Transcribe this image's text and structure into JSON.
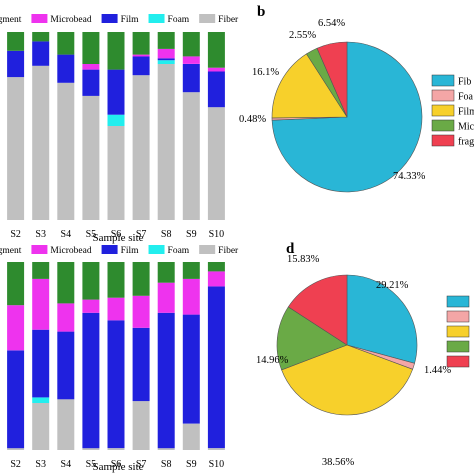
{
  "panels": {
    "b_label": "b",
    "d_label": "d"
  },
  "colors": {
    "Fragment": "#2e8b2e",
    "Microbead": "#ee33ee",
    "Film": "#2020dd",
    "Foam": "#22eeee",
    "Fiber": "#c0c0c0",
    "pie_fiber": "#29b6d6",
    "pie_foam": "#f4a6a6",
    "pie_film": "#f7d02b",
    "pie_micro": "#6aaa46",
    "pie_frag": "#ef4051"
  },
  "chart_data": [
    {
      "type": "bar",
      "stacked": true,
      "xlabel": "Sample site",
      "categories": [
        "S2",
        "S3",
        "S4",
        "S5",
        "S6",
        "S7",
        "S8",
        "S9",
        "S10"
      ],
      "legend": [
        "Fragment",
        "Microbead",
        "Film",
        "Foam",
        "Fiber"
      ],
      "ylim": [
        0,
        100
      ],
      "series": [
        {
          "name": "Fiber",
          "values": [
            76,
            82,
            73,
            66,
            50,
            77,
            83,
            68,
            60
          ]
        },
        {
          "name": "Foam",
          "values": [
            0,
            0,
            0,
            0,
            6,
            0,
            2,
            0,
            0
          ]
        },
        {
          "name": "Film",
          "values": [
            14,
            13,
            15,
            14,
            24,
            10,
            1,
            15,
            19
          ]
        },
        {
          "name": "Microbead",
          "values": [
            0,
            0,
            0,
            3,
            0,
            1,
            5,
            4,
            2
          ]
        },
        {
          "name": "Fragment",
          "values": [
            10,
            5,
            12,
            17,
            20,
            12,
            9,
            13,
            19
          ]
        }
      ]
    },
    {
      "type": "pie",
      "slices": [
        {
          "label": "74.33%",
          "value": 74.33
        },
        {
          "label": "0.48%",
          "value": 0.48
        },
        {
          "label": "16.1%",
          "value": 16.1
        },
        {
          "label": "2.55%",
          "value": 2.55
        },
        {
          "label": "6.54%",
          "value": 6.54
        }
      ],
      "legend": [
        "Fib",
        "Foa",
        "Film",
        "Mic",
        "frag"
      ]
    },
    {
      "type": "bar",
      "stacked": true,
      "xlabel": "Sample site",
      "categories": [
        "S2",
        "S3",
        "S4",
        "S5",
        "S6",
        "S7",
        "S8",
        "S9",
        "S10"
      ],
      "legend": [
        "Fragment",
        "Microbead",
        "Film",
        "Foam",
        "Fiber"
      ],
      "ylim": [
        0,
        100
      ],
      "series": [
        {
          "name": "Fiber",
          "values": [
            1,
            25,
            27,
            1,
            1,
            26,
            1,
            14,
            1
          ]
        },
        {
          "name": "Foam",
          "values": [
            0,
            3,
            0,
            0,
            0,
            0,
            0,
            0,
            0
          ]
        },
        {
          "name": "Film",
          "values": [
            52,
            36,
            36,
            72,
            68,
            39,
            72,
            58,
            86
          ]
        },
        {
          "name": "Microbead",
          "values": [
            24,
            27,
            15,
            7,
            12,
            17,
            16,
            19,
            8
          ]
        },
        {
          "name": "Fragment",
          "values": [
            23,
            9,
            22,
            20,
            19,
            18,
            11,
            9,
            5
          ]
        }
      ]
    },
    {
      "type": "pie",
      "slices": [
        {
          "label": "29.21%",
          "value": 29.21
        },
        {
          "label": "1.44%",
          "value": 1.44
        },
        {
          "label": "38.56%",
          "value": 38.56
        },
        {
          "label": "14.96%",
          "value": 14.96
        },
        {
          "label": "15.83%",
          "value": 15.83
        }
      ],
      "legend": [
        "",
        "",
        "",
        "",
        ""
      ]
    }
  ]
}
